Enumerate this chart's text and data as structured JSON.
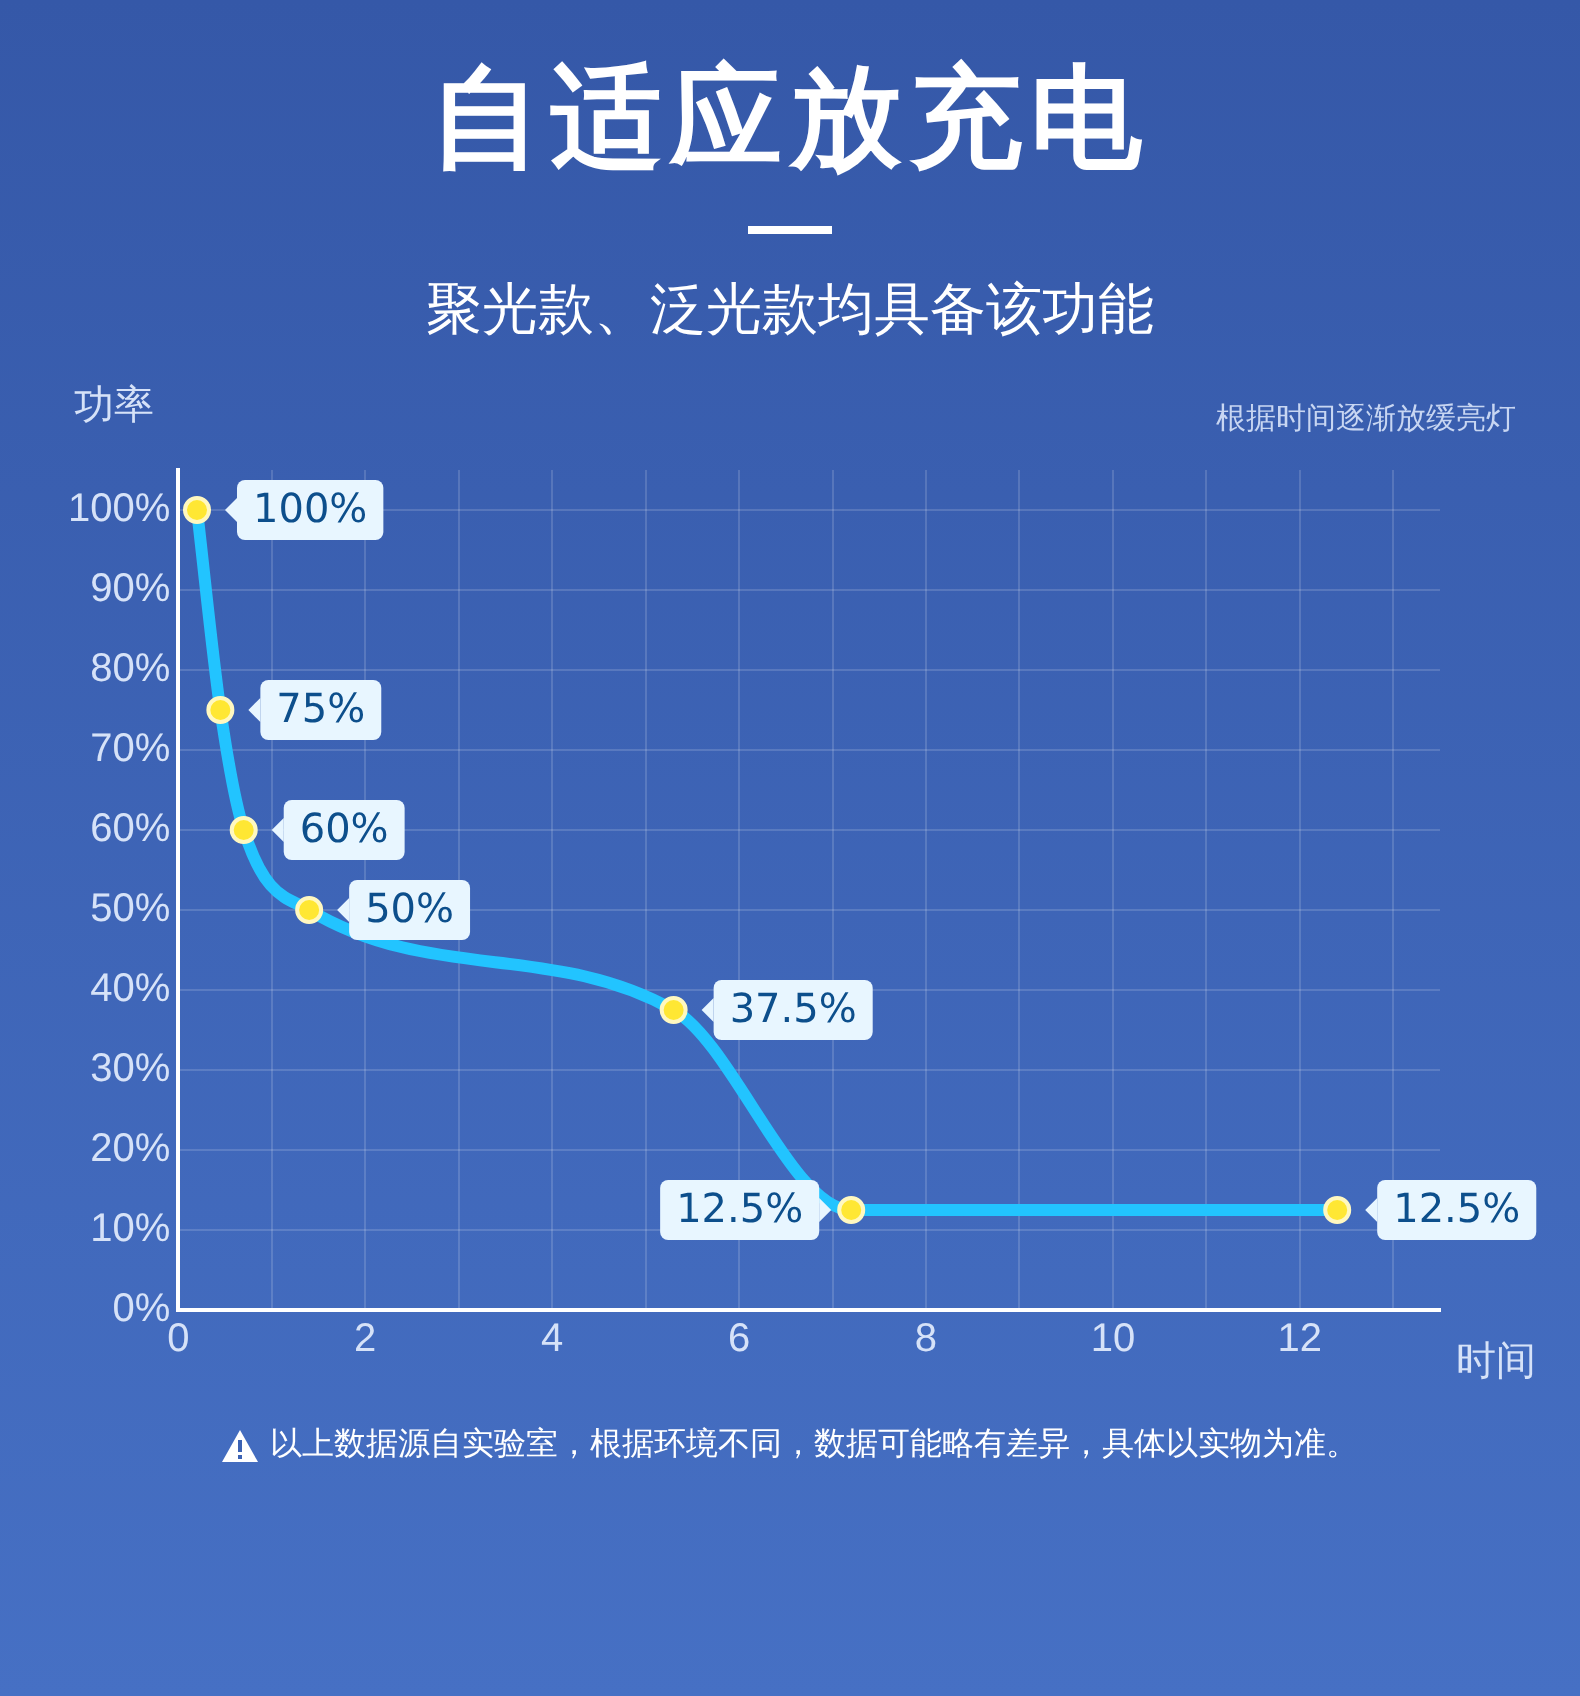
{
  "chart_data": {
    "type": "line",
    "title": "自适应放充电",
    "subtitle": "聚光款、泛光款均具备该功能",
    "xlabel": "时间",
    "ylabel": "功率",
    "annotations": [
      "根据时间逐渐放缓亮灯",
      "以上数据源自实验室，根据环境不同，数据可能略有差异，具体以实物为准。"
    ],
    "x": [
      0.2,
      0.45,
      0.7,
      1.4,
      5.3,
      7.2,
      12.4
    ],
    "series": [
      {
        "color": "#22c4ff",
        "values": [
          100,
          75,
          60,
          50,
          37.5,
          12.5,
          12.5
        ],
        "value_labels": [
          "100%",
          "75%",
          "60%",
          "50%",
          "37.5%",
          "12.5%",
          "12.5%"
        ]
      }
    ],
    "xlim": [
      0,
      13.5
    ],
    "xticks": [
      0,
      {
        "value": 1,
        "label": null
      },
      2,
      {
        "value": 3,
        "label": null
      },
      4,
      {
        "value": 5,
        "label": null
      },
      6,
      {
        "value": 7,
        "label": null
      },
      8,
      {
        "value": 9,
        "label": null
      },
      10,
      {
        "value": 11,
        "label": null
      },
      12,
      {
        "value": 13,
        "label": null
      }
    ],
    "ylim": [
      0,
      105
    ],
    "yticks": [
      {
        "value": 0,
        "label": "0%"
      },
      {
        "value": 10,
        "label": "10%"
      },
      {
        "value": 20,
        "label": "20%"
      },
      {
        "value": 30,
        "label": "30%"
      },
      {
        "value": 40,
        "label": "40%"
      },
      {
        "value": 50,
        "label": "50%"
      },
      {
        "value": 60,
        "label": "60%"
      },
      {
        "value": 70,
        "label": "70%"
      },
      {
        "value": 80,
        "label": "80%"
      },
      {
        "value": 90,
        "label": "90%"
      },
      {
        "value": 100,
        "label": "100%"
      }
    ],
    "grid": true,
    "marker": "circle",
    "line_style": "solid",
    "legend": false
  }
}
